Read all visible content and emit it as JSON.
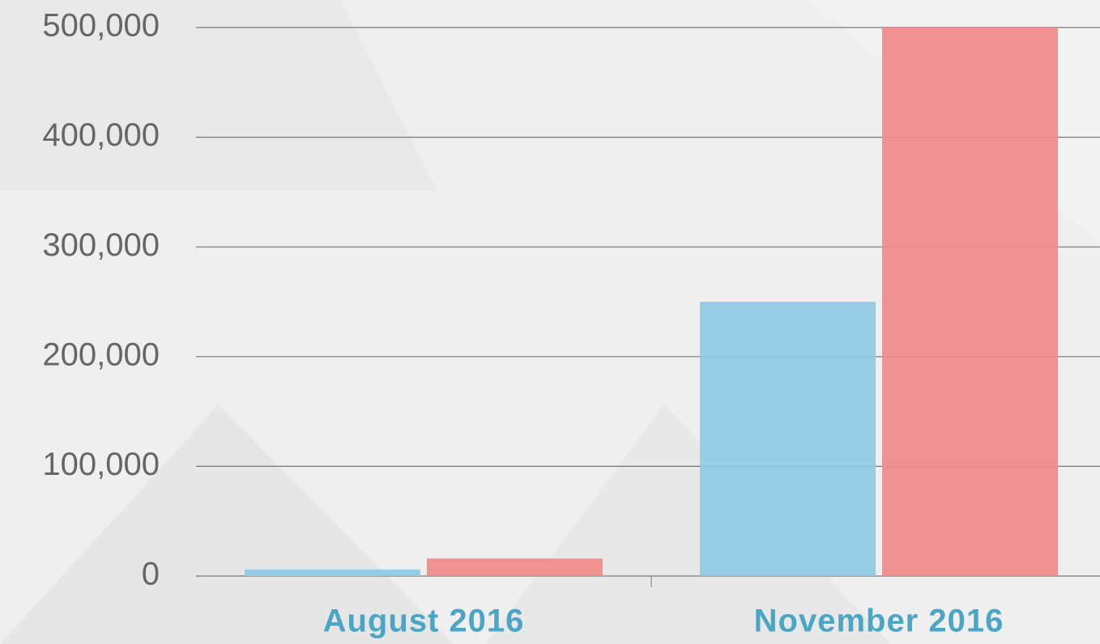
{
  "chart_data": {
    "type": "bar",
    "categories": [
      "August 2016",
      "November 2016"
    ],
    "series": [
      {
        "color": "#8ecae3",
        "values": [
          6000,
          250000
        ]
      },
      {
        "color": "#f08a8a",
        "values": [
          16000,
          500000
        ]
      }
    ],
    "ylim": [
      0,
      500000
    ],
    "yticks": [
      0,
      {
        "value": 100000,
        "label": "100,000"
      },
      {
        "value": 200000,
        "label": "200,000"
      },
      {
        "value": 300000,
        "label": "300,000"
      },
      {
        "value": 400000,
        "label": "400,000"
      },
      {
        "value": 500000,
        "label": "500,000"
      }
    ],
    "grid": true
  }
}
